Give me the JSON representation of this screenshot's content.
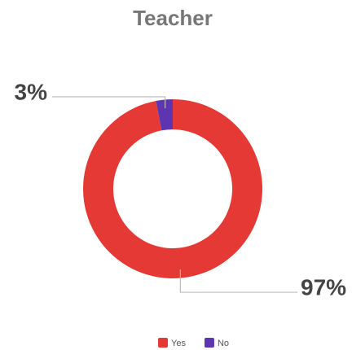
{
  "chart_data": {
    "type": "donut",
    "title": "Teacher",
    "categories": [
      "Yes",
      "No"
    ],
    "values": [
      97,
      3
    ],
    "value_labels": [
      "97%",
      "3%"
    ],
    "colors": [
      "#e53935",
      "#5e35b1"
    ],
    "legend": "bottom"
  }
}
